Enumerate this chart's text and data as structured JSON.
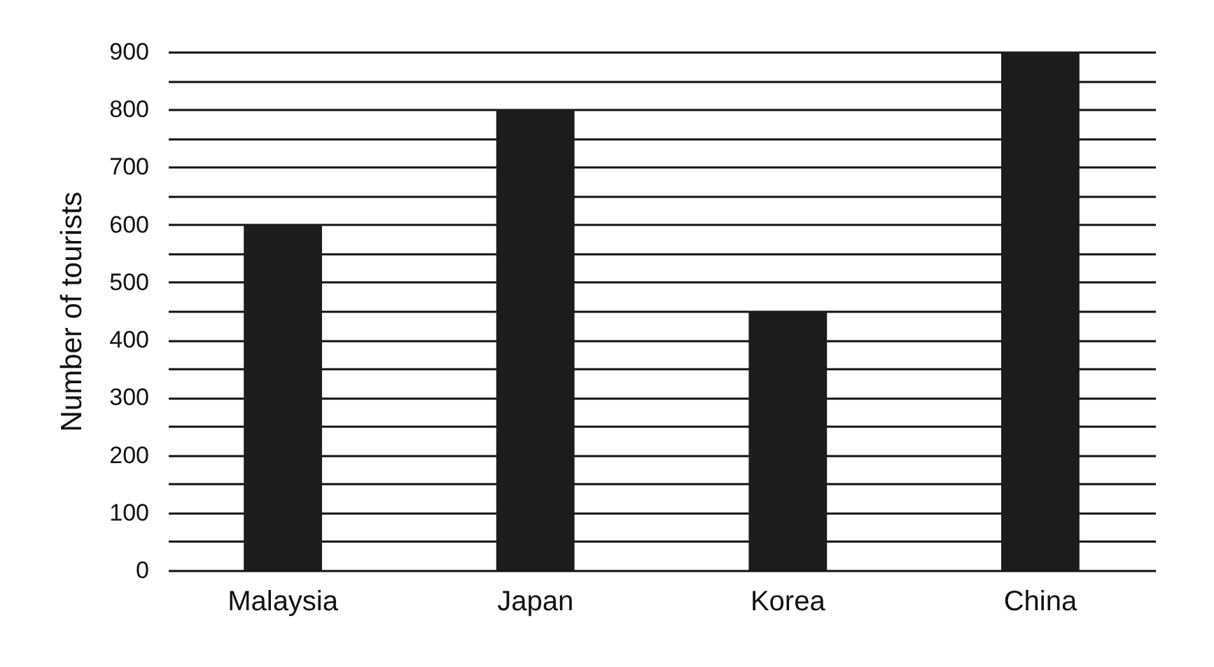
{
  "chart_data": {
    "type": "bar",
    "ylabel": "Number of tourists",
    "categories": [
      "Malaysia",
      "Japan",
      "Korea",
      "China"
    ],
    "values": [
      600,
      800,
      450,
      900
    ],
    "color": "#1c1c1c",
    "ylim": [
      0,
      900
    ],
    "yticks": [
      0,
      {
        "value": 50,
        "label": null
      },
      100,
      {
        "value": 150,
        "label": null
      },
      200,
      {
        "value": 250,
        "label": null
      },
      300,
      {
        "value": 350,
        "label": null
      },
      400,
      {
        "value": 450,
        "label": null
      },
      500,
      {
        "value": 550,
        "label": null
      },
      600,
      {
        "value": 650,
        "label": null
      },
      700,
      {
        "value": 750,
        "label": null
      },
      800,
      {
        "value": 850,
        "label": null
      },
      900
    ],
    "grid": "y"
  }
}
